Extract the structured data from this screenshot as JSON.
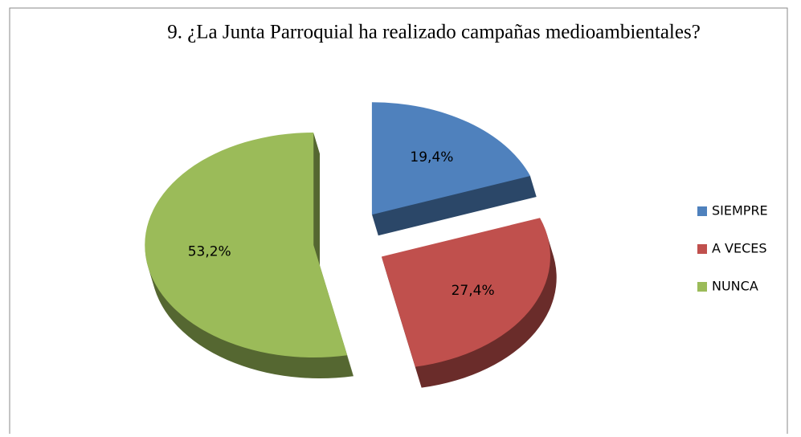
{
  "chart_data": {
    "type": "pie",
    "title": "9. ¿La Junta Parroquial ha realizado campañas medioambientales?",
    "categories": [
      "SIEMPRE",
      "A VECES",
      "NUNCA"
    ],
    "values": [
      19.4,
      27.4,
      53.2
    ],
    "value_labels": [
      "19,4%",
      "27,4%",
      "53,2%"
    ],
    "colors": [
      "#4f81bd",
      "#c0504d",
      "#9bbb59"
    ],
    "legend": "right"
  }
}
